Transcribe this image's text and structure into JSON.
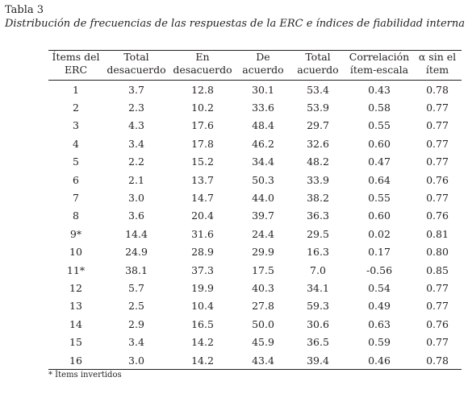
{
  "caption": {
    "label": "Tabla 3",
    "title": "Distribución de frecuencias  de las respuestas de la ERC e índices de fiabilidad interna"
  },
  "table": {
    "headers": [
      [
        "Ítems del",
        "ERC"
      ],
      [
        "Total",
        "desacuerdo"
      ],
      [
        "En",
        "desacuerdo"
      ],
      [
        "De",
        "acuerdo"
      ],
      [
        "Total",
        "acuerdo"
      ],
      [
        "Correlación",
        "ítem-escala"
      ],
      [
        "α sin el",
        "ítem"
      ]
    ],
    "rows": [
      [
        "1",
        "3.7",
        "12.8",
        "30.1",
        "53.4",
        "0.43",
        "0.78"
      ],
      [
        "2",
        "2.3",
        "10.2",
        "33.6",
        "53.9",
        "0.58",
        "0.77"
      ],
      [
        "3",
        "4.3",
        "17.6",
        "48.4",
        "29.7",
        "0.55",
        "0.77"
      ],
      [
        "4",
        "3.4",
        "17.8",
        "46.2",
        "32.6",
        "0.60",
        "0.77"
      ],
      [
        "5",
        "2.2",
        "15.2",
        "34.4",
        "48.2",
        "0.47",
        "0.77"
      ],
      [
        "6",
        "2.1",
        "13.7",
        "50.3",
        "33.9",
        "0.64",
        "0.76"
      ],
      [
        "7",
        "3.0",
        "14.7",
        "44.0",
        "38.2",
        "0.55",
        "0.77"
      ],
      [
        "8",
        "3.6",
        "20.4",
        "39.7",
        "36.3",
        "0.60",
        "0.76"
      ],
      [
        "9*",
        "14.4",
        "31.6",
        "24.4",
        "29.5",
        "0.02",
        "0.81"
      ],
      [
        "10",
        "24.9",
        "28.9",
        "29.9",
        "16.3",
        "0.17",
        "0.80"
      ],
      [
        "11*",
        "38.1",
        "37.3",
        "17.5",
        "7.0",
        "-0.56",
        "0.85"
      ],
      [
        "12",
        "5.7",
        "19.9",
        "40.3",
        "34.1",
        "0.54",
        "0.77"
      ],
      [
        "13",
        "2.5",
        "10.4",
        "27.8",
        "59.3",
        "0.49",
        "0.77"
      ],
      [
        "14",
        "2.9",
        "16.5",
        "50.0",
        "30.6",
        "0.63",
        "0.76"
      ],
      [
        "15",
        "3.4",
        "14.2",
        "45.9",
        "36.5",
        "0.59",
        "0.77"
      ],
      [
        "16",
        "3.0",
        "14.2",
        "43.4",
        "39.4",
        "0.46",
        "0.78"
      ]
    ]
  },
  "footnote": "* Ítems invertidos"
}
